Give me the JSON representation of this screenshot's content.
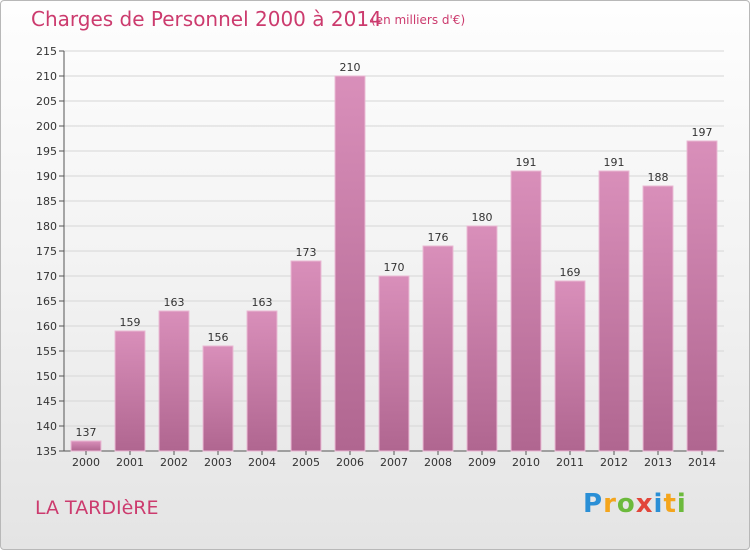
{
  "chart_data": {
    "type": "bar",
    "title": "Charges de Personnel 2000 à 2014",
    "subtitle": "(en milliers d'€)",
    "categories": [
      "2000",
      "2001",
      "2002",
      "2003",
      "2004",
      "2005",
      "2006",
      "2007",
      "2008",
      "2009",
      "2010",
      "2011",
      "2012",
      "2013",
      "2014"
    ],
    "values": [
      137,
      159,
      163,
      156,
      163,
      173,
      210,
      170,
      176,
      180,
      191,
      169,
      191,
      188,
      197
    ],
    "ylim": [
      135,
      215
    ],
    "yticks": [
      135,
      140,
      145,
      150,
      155,
      160,
      165,
      170,
      175,
      180,
      185,
      190,
      195,
      200,
      205,
      210,
      215
    ],
    "grid": true,
    "bar_color": "#d98fba",
    "bar_color_dark": "#b06690"
  },
  "footer": {
    "commune": "LA TARDIèRE"
  },
  "logo": {
    "letters": [
      "P",
      "r",
      "o",
      "x",
      "i",
      "t",
      "i"
    ],
    "colors": [
      "#2a8fd6",
      "#f4a51c",
      "#6cba3c",
      "#e2463a",
      "#2a8fd6",
      "#f4a51c",
      "#6cba3c"
    ]
  },
  "colors": {
    "title": "#cc3b6e"
  }
}
